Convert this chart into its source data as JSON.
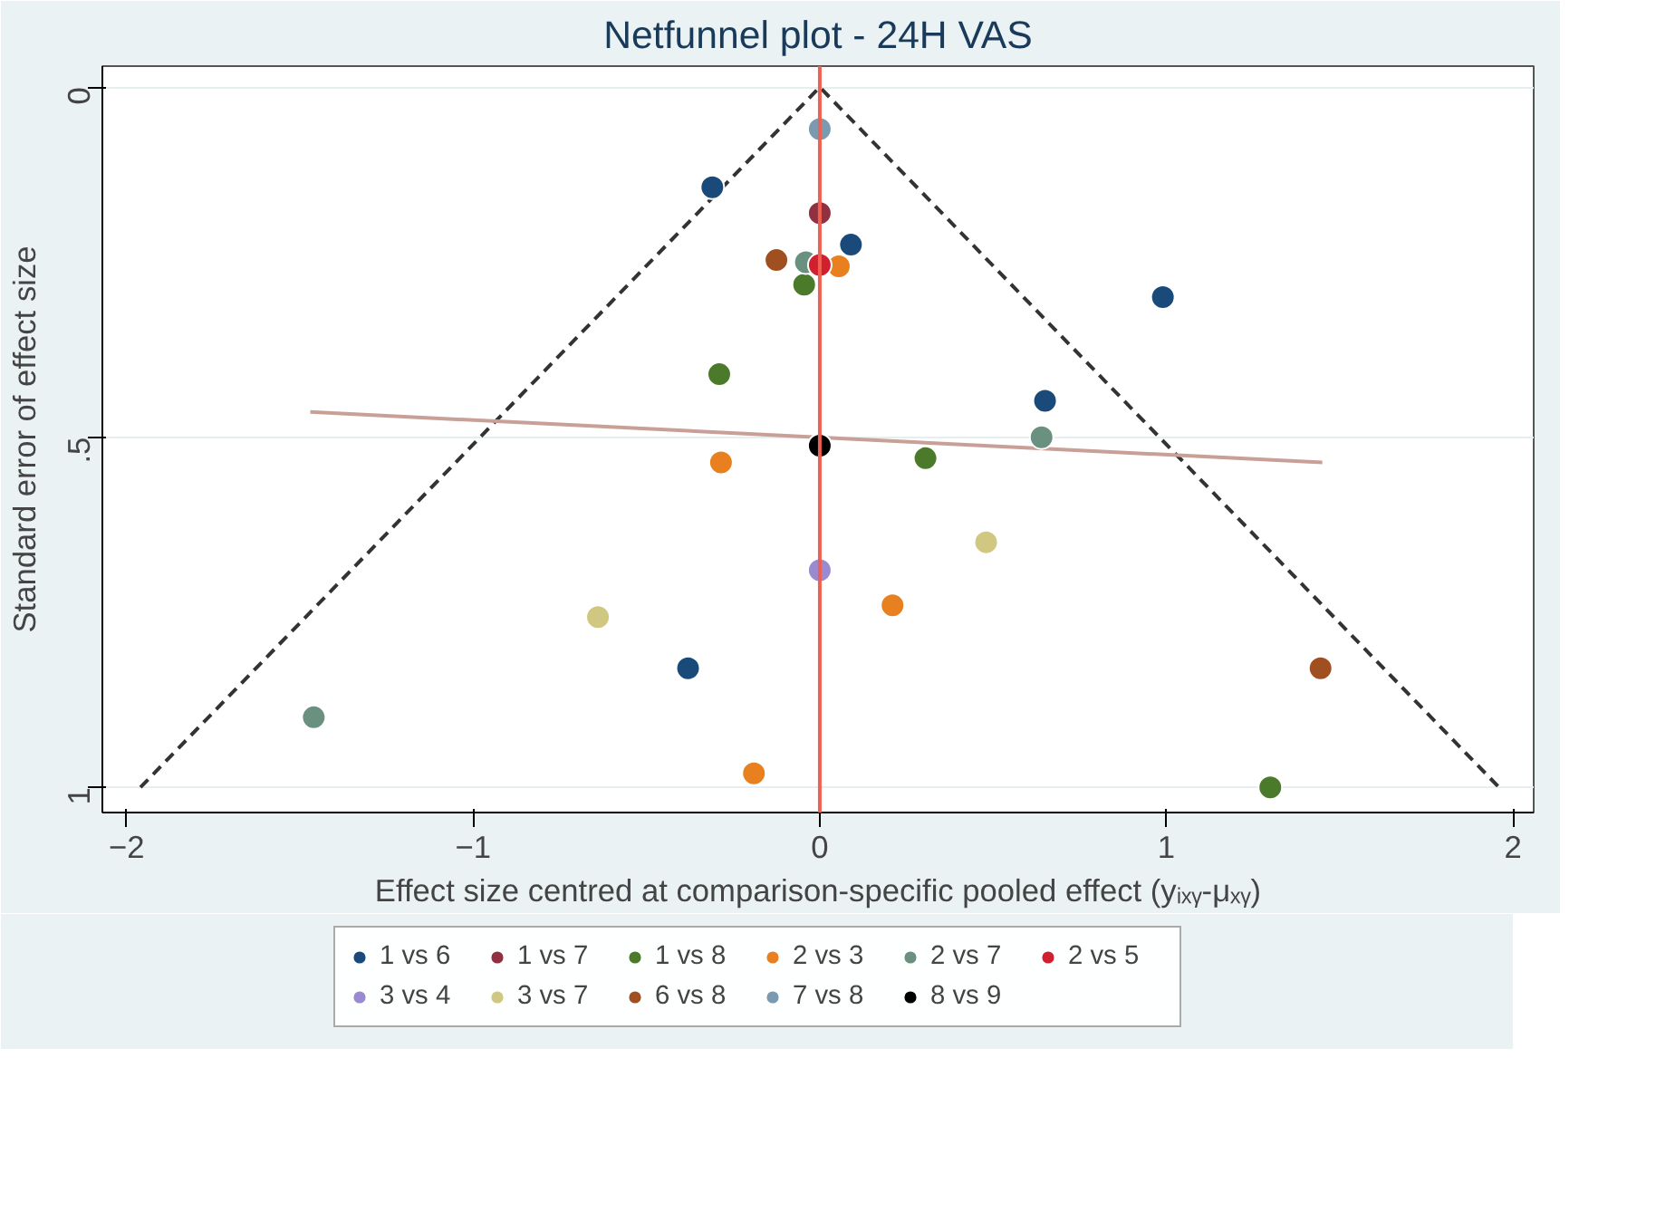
{
  "chart_data": {
    "type": "scatter",
    "title": "Netfunnel plot - 24H VAS",
    "xlabel": "Effect size centred at comparison-specific pooled effect (yᵢₓᵧ-μₓᵧ)",
    "ylabel": "Standard error of effect size",
    "xlim": [
      -2.07,
      2.06
    ],
    "ylim": [
      1.036,
      -0.03
    ],
    "xticks": [
      -2,
      -1,
      0,
      1,
      2
    ],
    "yticks": [
      0,
      {
        "value": 0.5,
        "label": ".5"
      },
      1
    ],
    "grid": "y",
    "legend": "bottom",
    "marker": "circle",
    "ref_lines": [
      {
        "axis": "x",
        "value": 0,
        "label": null,
        "color": "#f06050"
      }
    ],
    "series": [
      {
        "type": "line",
        "marker": "none",
        "color": "#333333",
        "line_style": "dashed",
        "x": [
          -1.96,
          0,
          1.96
        ],
        "values": [
          1,
          0,
          1
        ]
      },
      {
        "type": "line",
        "marker": "none",
        "color": "#c8a098",
        "line_style": "solid",
        "x": [
          -1.47,
          1.45
        ],
        "values": [
          0.464,
          0.536
        ]
      },
      {
        "name": "1 vs 6",
        "color": "#1a4a7a",
        "x": [
          -0.31,
          0.09,
          0.99,
          0.65,
          -0.38
        ],
        "values": [
          0.143,
          0.225,
          0.3,
          0.448,
          0.83
        ]
      },
      {
        "name": "1 vs 7",
        "color": "#903040",
        "x": [
          0
        ],
        "values": [
          0.18
        ]
      },
      {
        "name": "1 vs 8",
        "color": "#4a7a2a",
        "x": [
          -0.045,
          -0.29,
          0.305,
          1.3
        ],
        "values": [
          0.282,
          0.41,
          0.53,
          1.0
        ]
      },
      {
        "name": "2 vs 3",
        "color": "#e88020",
        "x": [
          0.055,
          -0.285,
          0.21,
          -0.19
        ],
        "values": [
          0.256,
          0.536,
          0.74,
          0.98
        ]
      },
      {
        "name": "2 vs 7",
        "color": "#6a9080",
        "x": [
          -0.04,
          0.64,
          -1.46
        ],
        "values": [
          0.25,
          0.5,
          0.9
        ]
      },
      {
        "name": "2 vs 5",
        "color": "#d02030",
        "x": [
          0
        ],
        "values": [
          0.254
        ]
      },
      {
        "name": "3 vs 4",
        "color": "#9a8ad0",
        "x": [
          0
        ],
        "values": [
          0.69
        ]
      },
      {
        "name": "3 vs 7",
        "color": "#d0c880",
        "x": [
          -0.64,
          0.48
        ],
        "values": [
          0.757,
          0.65
        ]
      },
      {
        "name": "6 vs 8",
        "color": "#a05020",
        "x": [
          -0.125,
          1.445
        ],
        "values": [
          0.247,
          0.83
        ]
      },
      {
        "name": "7 vs 8",
        "color": "#7a9ab0",
        "x": [
          0
        ],
        "values": [
          0.06
        ]
      },
      {
        "name": "8 vs 9",
        "color": "#000000",
        "x": [
          0
        ],
        "values": [
          0.512
        ]
      }
    ]
  }
}
